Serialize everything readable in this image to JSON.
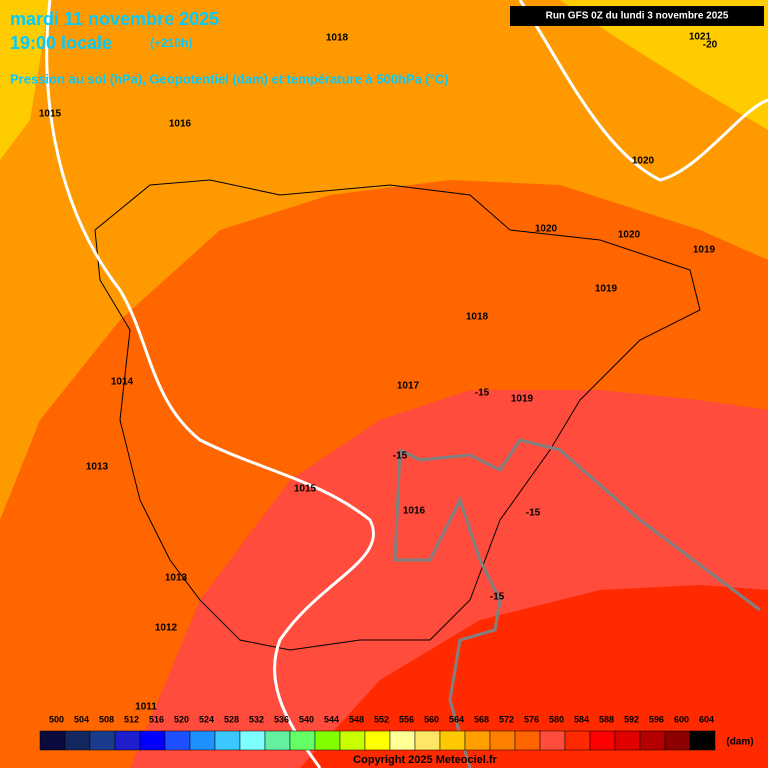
{
  "header": {
    "title": "mardi 11 novembre 2025",
    "subtitle": "19:00 locale",
    "lead": "(+210h)",
    "description": "Pression au sol (hPa), Geopotentiel (dam) et température à 500hPa (°C)",
    "run": "Run GFS 0Z du lundi 3 novembre 2025"
  },
  "map": {
    "labels": [
      1018,
      1015,
      1016,
      1020,
      1020,
      1020,
      1019,
      1019,
      1018,
      1017,
      -15,
      1019,
      1014,
      -15,
      1013,
      1015,
      1016,
      -15,
      1013,
      -15,
      1012,
      1011,
      1021,
      -20
    ]
  },
  "legend": {
    "values": [
      500,
      504,
      508,
      512,
      516,
      520,
      524,
      528,
      532,
      536,
      540,
      544,
      548,
      552,
      556,
      560,
      564,
      568,
      572,
      576,
      580,
      584,
      588,
      592,
      596,
      600,
      604
    ],
    "colors": [
      "#0a0a3c",
      "#13285e",
      "#1a3c8c",
      "#1e1ecc",
      "#0000ff",
      "#1e50ff",
      "#1e90ff",
      "#3cc8ff",
      "#7dffff",
      "#64f0a0",
      "#64ff64",
      "#80ff00",
      "#c8ff00",
      "#ffff00",
      "#ffff96",
      "#ffe664",
      "#ffc800",
      "#ffa000",
      "#ff8000",
      "#ff6400",
      "#ff4c3c",
      "#ff2a00",
      "#ff0000",
      "#e00000",
      "#b40000",
      "#8c0000",
      "#000000"
    ],
    "unit": "(dam)"
  },
  "footer": {
    "copyright": "Copyright 2025 Meteociel.fr"
  }
}
